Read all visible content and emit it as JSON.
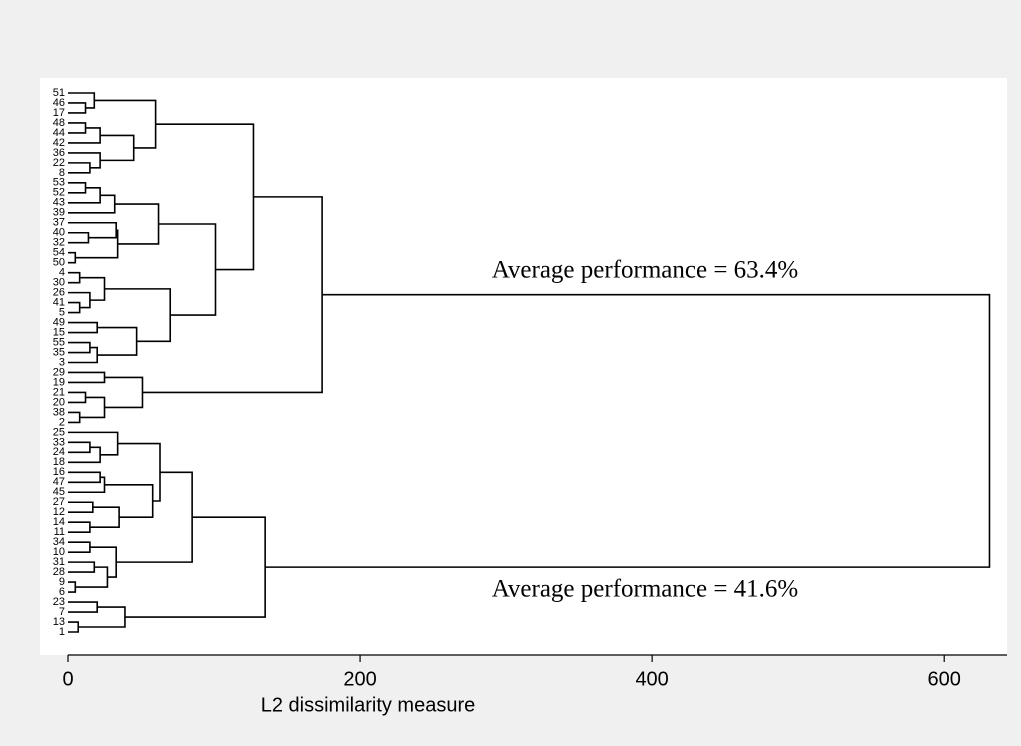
{
  "chart_data": {
    "type": "dendrogram",
    "xlabel": "L2 dissimilarity measure",
    "xlim": [
      0,
      643
    ],
    "xticks": [
      0,
      200,
      400,
      600
    ],
    "annotations": [
      "Average performance = 63.4%",
      "Average performance = 41.6%"
    ],
    "color": "#000000",
    "tree": {
      "height": 631,
      "children": [
        {
          "height": 174,
          "children": [
            {
              "height": 127,
              "children": [
                {
                  "height": 60,
                  "children": [
                    {
                      "height": 18,
                      "children": [
                        {
                          "label": "51"
                        },
                        {
                          "height": 12,
                          "children": [
                            {
                              "label": "46"
                            },
                            {
                              "label": "17"
                            }
                          ]
                        }
                      ]
                    },
                    {
                      "height": 45,
                      "children": [
                        {
                          "height": 22,
                          "children": [
                            {
                              "height": 12,
                              "children": [
                                {
                                  "label": "48"
                                },
                                {
                                  "label": "44"
                                }
                              ]
                            },
                            {
                              "label": "42"
                            }
                          ]
                        },
                        {
                          "height": 22,
                          "children": [
                            {
                              "label": "36"
                            },
                            {
                              "height": 15,
                              "children": [
                                {
                                  "label": "22"
                                },
                                {
                                  "label": "8"
                                }
                              ]
                            }
                          ]
                        }
                      ]
                    }
                  ]
                },
                {
                  "height": 101,
                  "children": [
                    {
                      "height": 62,
                      "children": [
                        {
                          "height": 32,
                          "children": [
                            {
                              "height": 22,
                              "children": [
                                {
                                  "height": 12,
                                  "children": [
                                    {
                                      "label": "53"
                                    },
                                    {
                                      "label": "52"
                                    }
                                  ]
                                },
                                {
                                  "label": "43"
                                }
                              ]
                            },
                            {
                              "label": "39"
                            }
                          ]
                        },
                        {
                          "height": 34,
                          "children": [
                            {
                              "height": 33,
                              "children": [
                                {
                                  "label": "37"
                                },
                                {
                                  "height": 14,
                                  "children": [
                                    {
                                      "label": "40"
                                    },
                                    {
                                      "label": "32"
                                    }
                                  ]
                                }
                              ]
                            },
                            {
                              "height": 5,
                              "children": [
                                {
                                  "label": "54"
                                },
                                {
                                  "label": "50"
                                }
                              ]
                            }
                          ]
                        }
                      ]
                    },
                    {
                      "height": 70,
                      "children": [
                        {
                          "height": 25,
                          "children": [
                            {
                              "height": 8,
                              "children": [
                                {
                                  "label": "4"
                                },
                                {
                                  "label": "30"
                                }
                              ]
                            },
                            {
                              "height": 15,
                              "children": [
                                {
                                  "label": "26"
                                },
                                {
                                  "height": 8,
                                  "children": [
                                    {
                                      "label": "41"
                                    },
                                    {
                                      "label": "5"
                                    }
                                  ]
                                }
                              ]
                            }
                          ]
                        },
                        {
                          "height": 47,
                          "children": [
                            {
                              "height": 20,
                              "children": [
                                {
                                  "label": "49"
                                },
                                {
                                  "label": "15"
                                }
                              ]
                            },
                            {
                              "height": 20,
                              "children": [
                                {
                                  "height": 15,
                                  "children": [
                                    {
                                      "label": "55"
                                    },
                                    {
                                      "label": "35"
                                    }
                                  ]
                                },
                                {
                                  "label": "3"
                                }
                              ]
                            }
                          ]
                        }
                      ]
                    }
                  ]
                }
              ]
            },
            {
              "height": 51,
              "children": [
                {
                  "height": 25,
                  "children": [
                    {
                      "label": "29"
                    },
                    {
                      "label": "19"
                    }
                  ]
                },
                {
                  "height": 25,
                  "children": [
                    {
                      "height": 12,
                      "children": [
                        {
                          "label": "21"
                        },
                        {
                          "label": "20"
                        }
                      ]
                    },
                    {
                      "height": 8,
                      "children": [
                        {
                          "label": "38"
                        },
                        {
                          "label": "2"
                        }
                      ]
                    }
                  ]
                }
              ]
            }
          ]
        },
        {
          "height": 135,
          "children": [
            {
              "height": 85,
              "children": [
                {
                  "height": 63,
                  "children": [
                    {
                      "height": 34,
                      "children": [
                        {
                          "label": "25"
                        },
                        {
                          "height": 22,
                          "children": [
                            {
                              "height": 15,
                              "children": [
                                {
                                  "label": "33"
                                },
                                {
                                  "label": "24"
                                }
                              ]
                            },
                            {
                              "label": "18"
                            }
                          ]
                        }
                      ]
                    },
                    {
                      "height": 58,
                      "children": [
                        {
                          "height": 25,
                          "children": [
                            {
                              "height": 22,
                              "children": [
                                {
                                  "label": "16"
                                },
                                {
                                  "label": "47"
                                }
                              ]
                            },
                            {
                              "label": "45"
                            }
                          ]
                        },
                        {
                          "height": 35,
                          "children": [
                            {
                              "height": 17,
                              "children": [
                                {
                                  "label": "27"
                                },
                                {
                                  "label": "12"
                                }
                              ]
                            },
                            {
                              "height": 15,
                              "children": [
                                {
                                  "label": "14"
                                },
                                {
                                  "label": "11"
                                }
                              ]
                            }
                          ]
                        }
                      ]
                    }
                  ]
                },
                {
                  "height": 33,
                  "children": [
                    {
                      "height": 15,
                      "children": [
                        {
                          "label": "34"
                        },
                        {
                          "label": "10"
                        }
                      ]
                    },
                    {
                      "height": 27,
                      "children": [
                        {
                          "height": 18,
                          "children": [
                            {
                              "label": "31"
                            },
                            {
                              "label": "28"
                            }
                          ]
                        },
                        {
                          "height": 5,
                          "children": [
                            {
                              "label": "9"
                            },
                            {
                              "label": "6"
                            }
                          ]
                        }
                      ]
                    }
                  ]
                }
              ]
            },
            {
              "height": 39,
              "children": [
                {
                  "height": 20,
                  "children": [
                    {
                      "label": "23"
                    },
                    {
                      "label": "7"
                    }
                  ]
                },
                {
                  "height": 7,
                  "children": [
                    {
                      "label": "13"
                    },
                    {
                      "label": "1"
                    }
                  ]
                }
              ]
            }
          ]
        }
      ]
    }
  }
}
